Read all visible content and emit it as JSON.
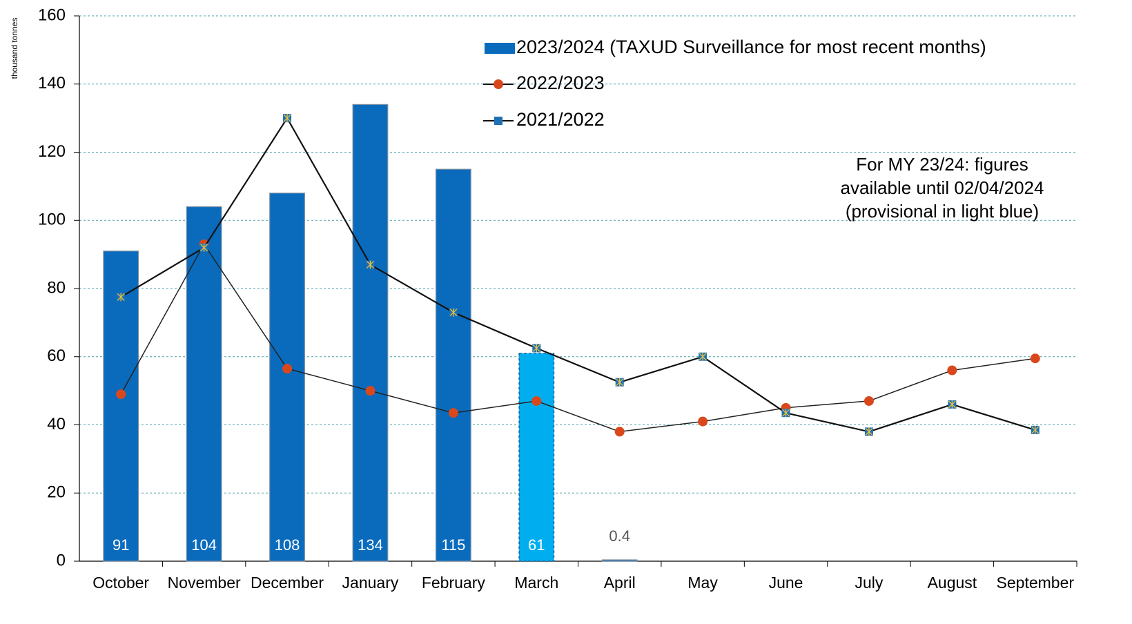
{
  "chart_data": {
    "type": "bar",
    "y_axis_label": "thousand tonnes",
    "categories": [
      "October",
      "November",
      "December",
      "January",
      "February",
      "March",
      "April",
      "May",
      "June",
      "July",
      "August",
      "September"
    ],
    "series": [
      {
        "name": "2023/2024 (TAXUD Surveillance for most recent months)",
        "type": "bar",
        "color": "#0a6bbd",
        "colors": [
          "#0a6bbd",
          "#0a6bbd",
          "#0a6bbd",
          "#0a6bbd",
          "#0a6bbd",
          "#00aeef",
          "#0a6bbd",
          null,
          null,
          null,
          null,
          null
        ],
        "values": [
          91,
          104,
          108,
          134,
          115,
          61,
          0.4,
          null,
          null,
          null,
          null,
          null
        ]
      },
      {
        "name": "2022/2023",
        "type": "line",
        "color": "#d9481c",
        "values": [
          49,
          93,
          56.5,
          50,
          43.5,
          47,
          38,
          41,
          45,
          47,
          56,
          59.5
        ]
      },
      {
        "name": "2021/2022",
        "type": "line",
        "color": "#1f6fb5",
        "values": [
          77.5,
          92,
          130,
          87,
          73,
          62.5,
          52.5,
          60,
          43.5,
          38,
          46,
          38.5
        ]
      }
    ],
    "annotation": [
      "For MY 23/24: figures",
      "available until 02/04/2024",
      "(provisional in light blue)"
    ],
    "ylim": [
      0,
      160
    ],
    "yticks": [
      0,
      20,
      40,
      60,
      80,
      100,
      120,
      140,
      160
    ],
    "grid": true
  }
}
